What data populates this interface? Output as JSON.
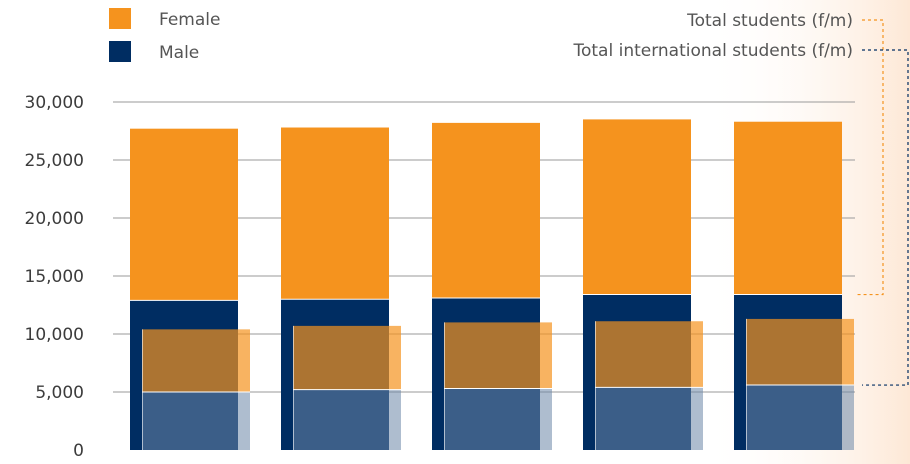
{
  "chart_data": {
    "type": "bar",
    "categories": [
      "",
      "",
      "",
      "",
      ""
    ],
    "series": [
      {
        "name": "Male",
        "values": [
          12900,
          13000,
          13100,
          13400,
          13400
        ]
      },
      {
        "name": "Female",
        "values": [
          14800,
          14800,
          15100,
          15100,
          14900
        ]
      }
    ],
    "overlay_series": [
      {
        "name": "Male",
        "values": [
          5000,
          5200,
          5300,
          5400,
          5600
        ]
      },
      {
        "name": "Female",
        "values": [
          5400,
          5500,
          5700,
          5700,
          5700
        ]
      }
    ],
    "stacked": true,
    "ylim": [
      0,
      30000
    ],
    "yticks": [
      0,
      5000,
      10000,
      15000,
      20000,
      25000,
      30000
    ],
    "ytick_labels": [
      "0",
      "5,000",
      "10,000",
      "15,000",
      "20,000",
      "25,000",
      "30,000"
    ],
    "grid": true,
    "legend": {
      "placement": "top-left",
      "entries": [
        {
          "label": "Female",
          "color": "#f5931e"
        },
        {
          "label": "Male",
          "color": "#002d62"
        }
      ]
    },
    "line_legend": {
      "placement": "top-right",
      "entries": [
        {
          "label": "Total students (f/m)",
          "color": "#f5931e",
          "style": "dashed"
        },
        {
          "label": "Total international students (f/m)",
          "color": "#002d62",
          "style": "dashed"
        }
      ]
    },
    "colors": {
      "female": "#f5931e",
      "male": "#002d62",
      "overlay_female": "#b97e31",
      "overlay_male": "#345a87",
      "gradient": "#fde8d6"
    }
  }
}
